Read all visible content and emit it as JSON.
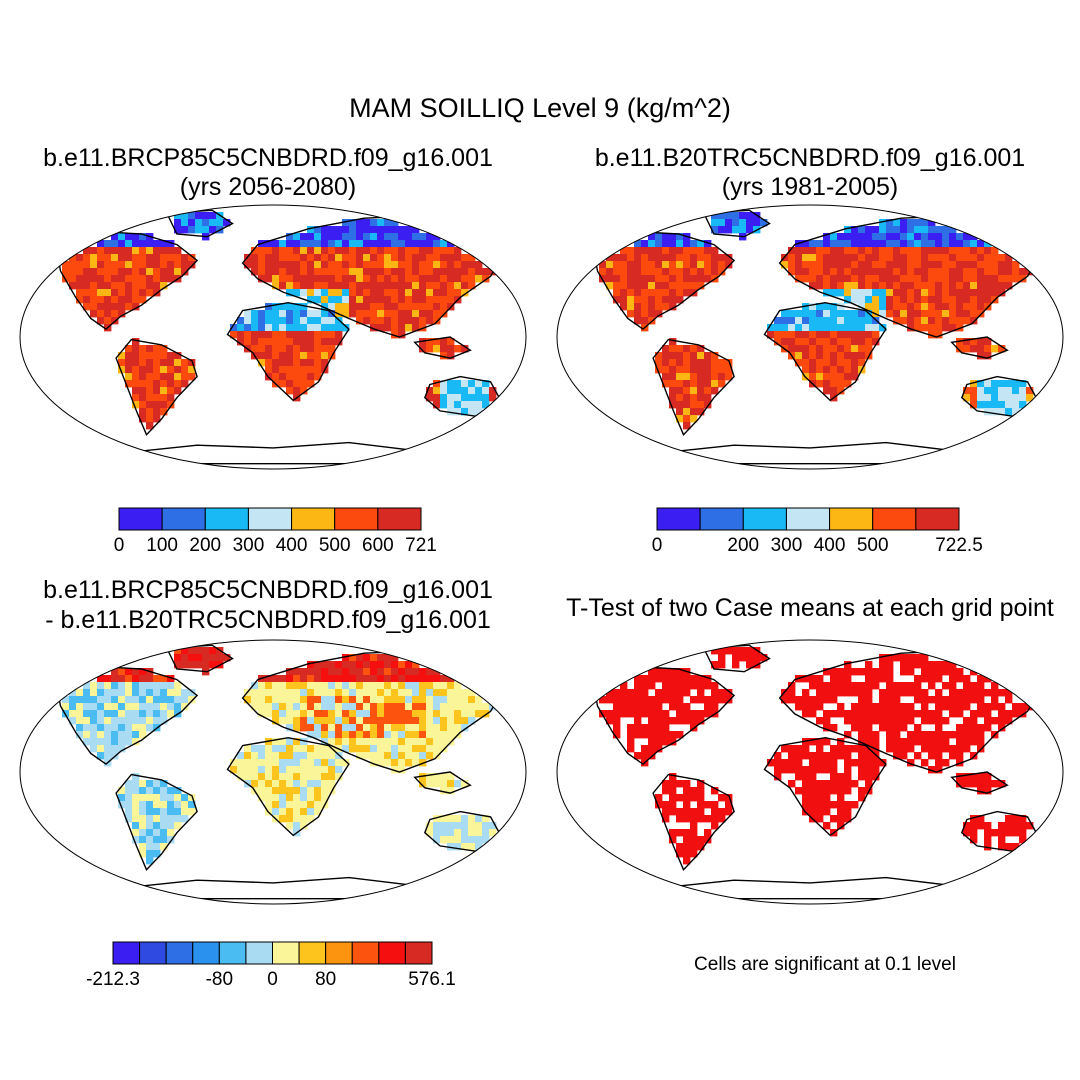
{
  "figure": {
    "title": "MAM SOILLIQ Level 9 (kg/m^2)"
  },
  "panels": {
    "top_left": {
      "title_line1": "b.e11.BRCP85C5CNBDRD.f09_g16.001",
      "title_line2": "(yrs 2056-2080)"
    },
    "top_right": {
      "title_line1": "b.e11.B20TRC5CNBDRD.f09_g16.001",
      "title_line2": "(yrs 1981-2005)"
    },
    "bottom_left": {
      "title_line1": "b.e11.BRCP85C5CNBDRD.f09_g16.001",
      "title_line2": "- b.e11.B20TRC5CNBDRD.f09_g16.001"
    },
    "bottom_right": {
      "title_line1": "T-Test of two Case means at each grid point",
      "note": "Cells are significant at 0.1 level"
    }
  },
  "chart_data": [
    {
      "type": "heatmap",
      "name": "future-case-map",
      "title": "b.e11.BRCP85C5CNBDRD.f09_g16.001 (yrs 2056-2080)",
      "projection": "robinson-world",
      "colorbar": {
        "colors": [
          "#3a1ef2",
          "#2f6fe6",
          "#19b9f5",
          "#c4e6f4",
          "#fcb714",
          "#fc4a0e",
          "#d72a22"
        ],
        "tick_labels": [
          "0",
          "100",
          "200",
          "300",
          "400",
          "500",
          "600",
          "721"
        ],
        "min": 0,
        "max": 721
      }
    },
    {
      "type": "heatmap",
      "name": "historical-case-map",
      "title": "b.e11.B20TRC5CNBDRD.f09_g16.001 (yrs 1981-2005)",
      "projection": "robinson-world",
      "colorbar": {
        "colors": [
          "#3a1ef2",
          "#2f6fe6",
          "#19b9f5",
          "#c4e6f4",
          "#fcb714",
          "#fc4a0e",
          "#d72a22"
        ],
        "tick_labels": [
          "0",
          "200",
          "300",
          "400",
          "500",
          "722.5"
        ],
        "tick_indices": [
          0,
          2,
          3,
          4,
          5,
          7
        ],
        "min": 0,
        "max": 722.5
      }
    },
    {
      "type": "heatmap",
      "name": "difference-map",
      "title": "b.e11.BRCP85C5CNBDRD.f09_g16.001 - b.e11.B20TRC5CNBDRD.f09_g16.001",
      "projection": "robinson-world",
      "colorbar": {
        "colors": [
          "#3a1ef2",
          "#2f4ae0",
          "#2f6fe6",
          "#2a92ee",
          "#4bbcf2",
          "#a9dbf2",
          "#fbf59a",
          "#fcc41c",
          "#fc9410",
          "#fc540e",
          "#f50f0f",
          "#d72a22"
        ],
        "tick_labels": [
          "-212.3",
          "-80",
          "0",
          "80",
          "576.1"
        ],
        "tick_indices": [
          0,
          4,
          6,
          8,
          12
        ],
        "min": -212.3,
        "max": 576.1
      }
    },
    {
      "type": "heatmap",
      "name": "t-test-significance-map",
      "title": "T-Test of two Case means at each grid point",
      "projection": "robinson-world",
      "significant_color": "#f20f0f",
      "significance_level": 0.1
    }
  ]
}
